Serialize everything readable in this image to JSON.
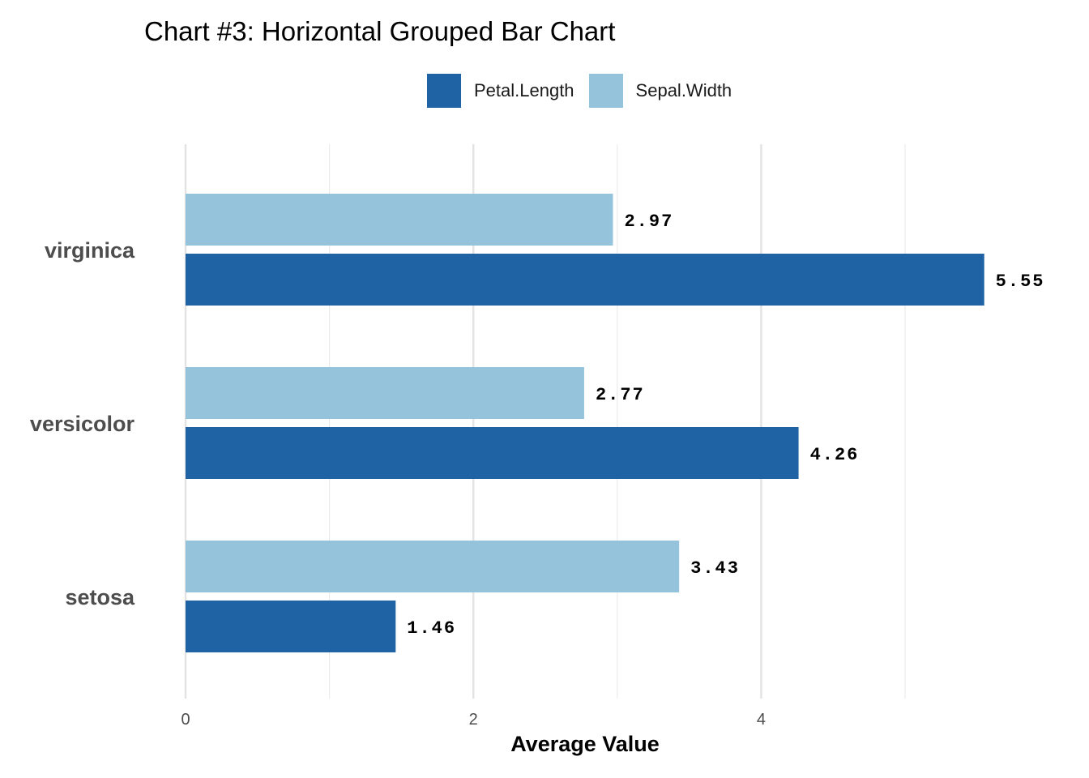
{
  "chart_data": {
    "type": "bar",
    "orientation": "horizontal",
    "title": "Chart #3: Horizontal Grouped Bar Chart",
    "xlabel": "Average Value",
    "ylabel": "",
    "categories": [
      "virginica",
      "versicolor",
      "setosa"
    ],
    "series": [
      {
        "name": "Sepal.Width",
        "color": "#96c3dc",
        "values": [
          2.97,
          2.77,
          3.43
        ]
      },
      {
        "name": "Petal.Length",
        "color": "#1f63a4",
        "values": [
          5.55,
          4.26,
          1.46
        ]
      }
    ],
    "value_labels": {
      "Sepal.Width": [
        "2.97",
        "2.77",
        "3.43"
      ],
      "Petal.Length": [
        "5.55",
        "4.26",
        "1.46"
      ]
    },
    "legend": [
      {
        "name": "Petal.Length",
        "color": "#1f63a4"
      },
      {
        "name": "Sepal.Width",
        "color": "#96c3dc"
      }
    ],
    "legend_position": "top",
    "xlim": [
      0,
      5.9
    ],
    "xticks": [
      0,
      2,
      4
    ],
    "xtick_labels": [
      "0",
      "2",
      "4"
    ],
    "minor_gridlines": [
      1,
      3,
      5
    ],
    "grid": true
  }
}
